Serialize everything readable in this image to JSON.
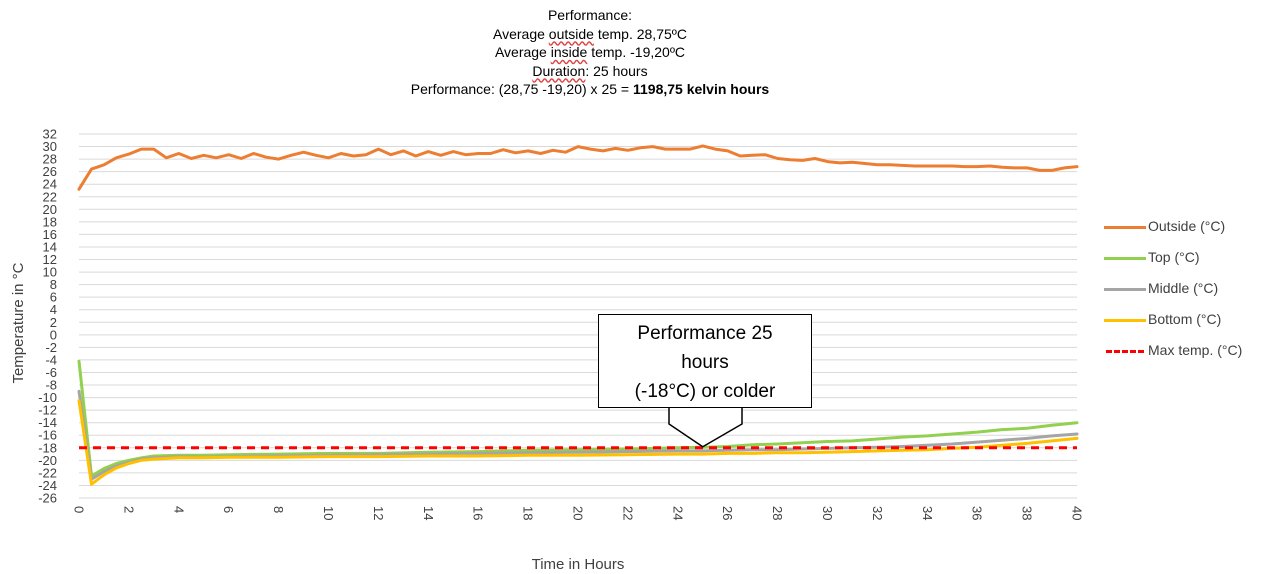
{
  "title": {
    "line1": "Performance:",
    "line2_pre": "Average ",
    "line2_ul": "outside",
    "line2_post": " temp. 28,75ºC",
    "line3_pre": "Average ",
    "line3_ul": "inside",
    "line3_post": " temp. -19,20ºC",
    "line4_ul": "Duration",
    "line4_post": ": 25 hours",
    "line5_pre": "Performance: (28,75 -19,20) x 25 = ",
    "line5_bold": "1198,75 kelvin hours"
  },
  "callout": {
    "line1": "Performance  25",
    "line2": "hours",
    "line3": "(-18°C) or colder"
  },
  "chart_data": {
    "type": "line",
    "xlabel": "Time in Hours",
    "ylabel": "Temperature in °C",
    "xlim": [
      0,
      40
    ],
    "ylim": [
      -26,
      32
    ],
    "x_ticks": [
      "0",
      "2",
      "4",
      "6",
      "8",
      "10",
      "12",
      "14",
      "16",
      "18",
      "20",
      "22",
      "24",
      "26",
      "28",
      "30",
      "32",
      "34",
      "36",
      "38",
      "40"
    ],
    "y_ticks": [
      "32",
      "30",
      "28",
      "26",
      "24",
      "22",
      "20",
      "18",
      "16",
      "14",
      "12",
      "10",
      "8",
      "6",
      "4",
      "2",
      "0",
      "-2",
      "-4",
      "-6",
      "-8",
      "-10",
      "-12",
      "-14",
      "-16",
      "-18",
      "-20",
      "-22",
      "-24",
      "-26"
    ],
    "grid": true,
    "legend_position": "right",
    "series": [
      {
        "name": "Outside (°C)",
        "color": "#ed7d31",
        "style": "solid",
        "x": [
          0,
          0.5,
          1,
          1.5,
          2,
          2.5,
          3,
          3.5,
          4,
          4.5,
          5,
          5.5,
          6,
          6.5,
          7,
          7.5,
          8,
          8.5,
          9,
          9.5,
          10,
          10.5,
          11,
          11.5,
          12,
          12.5,
          13,
          13.5,
          14,
          14.5,
          15,
          15.5,
          16,
          16.5,
          17,
          17.5,
          18,
          18.5,
          19,
          19.5,
          20,
          20.5,
          21,
          21.5,
          22,
          22.5,
          23,
          23.5,
          24,
          24.5,
          25,
          25.5,
          26,
          26.5,
          27,
          27.5,
          28,
          28.5,
          29,
          29.5,
          30,
          30.5,
          31,
          31.5,
          32,
          32.5,
          33,
          33.5,
          34,
          34.5,
          35,
          35.5,
          36,
          36.5,
          37,
          37.5,
          38,
          38.5,
          39,
          39.5,
          40
        ],
        "y": [
          23.2,
          26.4,
          27.1,
          28.2,
          28.8,
          29.6,
          29.6,
          28.2,
          28.9,
          28.1,
          28.6,
          28.2,
          28.7,
          28.1,
          28.9,
          28.3,
          28.0,
          28.6,
          29.1,
          28.6,
          28.2,
          28.9,
          28.5,
          28.7,
          29.6,
          28.7,
          29.3,
          28.5,
          29.2,
          28.6,
          29.2,
          28.7,
          28.9,
          28.9,
          29.5,
          29.0,
          29.3,
          28.9,
          29.4,
          29.1,
          30.0,
          29.6,
          29.3,
          29.7,
          29.4,
          29.8,
          30.0,
          29.6,
          29.6,
          29.6,
          30.1,
          29.6,
          29.3,
          28.5,
          28.6,
          28.7,
          28.1,
          27.9,
          27.8,
          28.1,
          27.6,
          27.4,
          27.5,
          27.3,
          27.1,
          27.1,
          27.0,
          26.9,
          26.9,
          26.9,
          26.9,
          26.8,
          26.8,
          26.9,
          26.7,
          26.6,
          26.6,
          26.2,
          26.2,
          26.6,
          26.8
        ]
      },
      {
        "name": "Top (°C)",
        "color": "#92d050",
        "style": "solid",
        "x": [
          0,
          0.5,
          1,
          1.5,
          2,
          2.5,
          3,
          4,
          5,
          6,
          8,
          10,
          12,
          14,
          16,
          18,
          20,
          22,
          24,
          25,
          26,
          27,
          28,
          29,
          30,
          31,
          32,
          33,
          34,
          35,
          36,
          37,
          38,
          39,
          40
        ],
        "y": [
          -4.2,
          -22.5,
          -21.3,
          -20.5,
          -20.0,
          -19.6,
          -19.3,
          -19.2,
          -19.2,
          -19.1,
          -19.0,
          -18.9,
          -18.9,
          -18.7,
          -18.6,
          -18.4,
          -18.3,
          -18.2,
          -18.0,
          -17.9,
          -17.8,
          -17.5,
          -17.4,
          -17.2,
          -17.0,
          -16.9,
          -16.6,
          -16.3,
          -16.1,
          -15.8,
          -15.5,
          -15.1,
          -14.9,
          -14.4,
          -14.0
        ]
      },
      {
        "name": "Middle (°C)",
        "color": "#a5a5a5",
        "style": "solid",
        "x": [
          0,
          0.5,
          1,
          1.5,
          2,
          2.5,
          3,
          4,
          5,
          6,
          8,
          10,
          12,
          14,
          16,
          18,
          20,
          22,
          24,
          25,
          26,
          27,
          28,
          29,
          30,
          31,
          32,
          33,
          34,
          35,
          36,
          37,
          38,
          39,
          40
        ],
        "y": [
          -9.0,
          -23.0,
          -21.8,
          -20.9,
          -20.3,
          -19.8,
          -19.6,
          -19.4,
          -19.5,
          -19.4,
          -19.3,
          -19.2,
          -19.1,
          -19.0,
          -18.9,
          -18.8,
          -18.7,
          -18.6,
          -18.5,
          -18.5,
          -18.4,
          -18.3,
          -18.3,
          -18.2,
          -18.1,
          -18.0,
          -17.9,
          -17.8,
          -17.6,
          -17.4,
          -17.1,
          -16.8,
          -16.5,
          -16.1,
          -15.8
        ]
      },
      {
        "name": "Bottom (°C)",
        "color": "#ffc000",
        "style": "solid",
        "x": [
          0,
          0.5,
          1,
          1.5,
          2,
          2.5,
          3,
          4,
          5,
          6,
          8,
          10,
          12,
          14,
          16,
          18,
          20,
          22,
          24,
          25,
          26,
          27,
          28,
          29,
          30,
          31,
          32,
          33,
          34,
          35,
          36,
          37,
          38,
          39,
          40
        ],
        "y": [
          -10.5,
          -23.8,
          -22.3,
          -21.2,
          -20.5,
          -20.0,
          -19.8,
          -19.6,
          -19.6,
          -19.5,
          -19.5,
          -19.4,
          -19.4,
          -19.3,
          -19.3,
          -19.2,
          -19.2,
          -19.1,
          -19.0,
          -19.0,
          -18.9,
          -18.9,
          -18.8,
          -18.8,
          -18.7,
          -18.6,
          -18.5,
          -18.4,
          -18.3,
          -18.1,
          -17.9,
          -17.6,
          -17.3,
          -16.9,
          -16.5
        ]
      },
      {
        "name": "Max temp. (°C)",
        "color": "#ff0000",
        "style": "dashed",
        "x": [
          0,
          40
        ],
        "y": [
          -18,
          -18
        ]
      }
    ]
  }
}
